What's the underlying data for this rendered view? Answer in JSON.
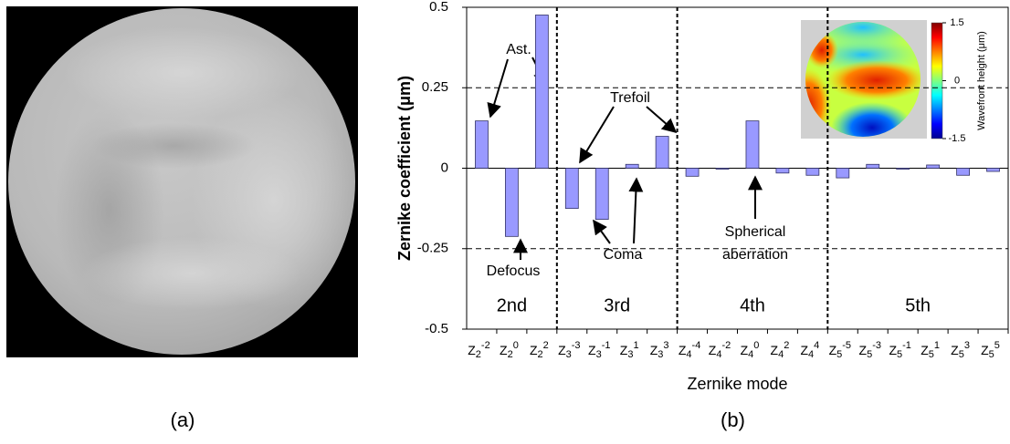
{
  "panel_a": {
    "label": "(a)"
  },
  "chart_data": {
    "type": "bar",
    "panel_label": "(b)",
    "x_label": "Zernike mode",
    "y_label": "Zernike coefficient (μm)",
    "categories": [
      {
        "base": "Z",
        "sub": "2",
        "sup": "-2"
      },
      {
        "base": "Z",
        "sub": "2",
        "sup": "0"
      },
      {
        "base": "Z",
        "sub": "2",
        "sup": "2"
      },
      {
        "base": "Z",
        "sub": "3",
        "sup": "-3"
      },
      {
        "base": "Z",
        "sub": "3",
        "sup": "-1"
      },
      {
        "base": "Z",
        "sub": "3",
        "sup": "1"
      },
      {
        "base": "Z",
        "sub": "3",
        "sup": "3"
      },
      {
        "base": "Z",
        "sub": "4",
        "sup": "-4"
      },
      {
        "base": "Z",
        "sub": "4",
        "sup": "-2"
      },
      {
        "base": "Z",
        "sub": "4",
        "sup": "0"
      },
      {
        "base": "Z",
        "sub": "4",
        "sup": "2"
      },
      {
        "base": "Z",
        "sub": "4",
        "sup": "4"
      },
      {
        "base": "Z",
        "sub": "5",
        "sup": "-5"
      },
      {
        "base": "Z",
        "sub": "5",
        "sup": "-3"
      },
      {
        "base": "Z",
        "sub": "5",
        "sup": "-1"
      },
      {
        "base": "Z",
        "sub": "5",
        "sup": "1"
      },
      {
        "base": "Z",
        "sub": "5",
        "sup": "3"
      },
      {
        "base": "Z",
        "sub": "5",
        "sup": "5"
      }
    ],
    "values": [
      0.147,
      -0.212,
      0.476,
      -0.125,
      -0.159,
      0.012,
      0.099,
      -0.025,
      -0.003,
      0.147,
      -0.015,
      -0.022,
      -0.03,
      0.012,
      -0.003,
      0.01,
      -0.022,
      -0.01
    ],
    "color": "#9999ff",
    "group_labels": [
      "2nd",
      "3rd",
      "4th",
      "5th"
    ],
    "ylim": [
      -0.5,
      0.5
    ],
    "yticks": [
      -0.5,
      -0.25,
      0,
      0.25,
      0.5
    ],
    "grid": true,
    "annotations": {
      "ast": "Ast.",
      "trefoil": "Trefoil",
      "defocus": "Defocus",
      "coma": "Coma",
      "spherical": [
        "Spherical",
        "aberration"
      ]
    },
    "inset": {
      "colorbar_label": "Wavefront height (μm)",
      "clim": [
        -1.5,
        1.5
      ],
      "cticks": [
        -1.5,
        0,
        1.5
      ]
    }
  }
}
